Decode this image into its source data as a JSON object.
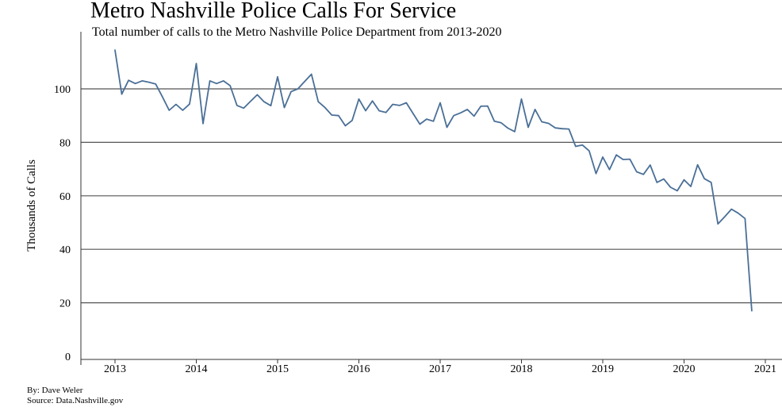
{
  "chart_data": {
    "type": "line",
    "title": "Metro Nashville Police Calls For Service",
    "subtitle": "Total number of calls to the Metro Nashville Police Department from 2013-2020",
    "ylabel": "Thousands of Calls",
    "xlabel": "",
    "ylim": [
      0,
      115
    ],
    "xlim": [
      2012.85,
      2021.2
    ],
    "yticks": [
      0,
      20,
      40,
      60,
      80,
      100
    ],
    "xticks": [
      2013,
      2014,
      2015,
      2016,
      2017,
      2018,
      2019,
      2020,
      2021
    ],
    "grid": "horizontal",
    "line_color": "#4a6f97",
    "series": [
      {
        "x_start": 2013.0,
        "x_step_months": 1,
        "values": [
          114.5,
          98.0,
          103.2,
          102.0,
          103.0,
          102.5,
          101.8,
          97.0,
          92.0,
          94.2,
          92.0,
          94.3,
          109.5,
          87.0,
          103.0,
          102.0,
          103.0,
          101.2,
          93.8,
          92.8,
          95.3,
          97.8,
          95.2,
          93.7,
          104.5,
          93.0,
          99.0,
          100.0,
          102.8,
          105.5,
          95.2,
          93.0,
          90.2,
          90.0,
          86.2,
          88.2,
          96.2,
          91.8,
          95.5,
          91.8,
          91.2,
          94.2,
          93.8,
          94.8,
          90.8,
          86.8,
          88.7,
          87.9,
          94.8,
          85.6,
          90.0,
          91.0,
          92.3,
          89.8,
          93.5,
          93.6,
          87.9,
          87.3,
          85.3,
          84.0,
          96.2,
          85.6,
          92.3,
          87.7,
          87.1,
          85.4,
          85.1,
          85.0,
          78.5,
          79.0,
          76.8,
          68.3,
          74.5,
          69.8,
          75.3,
          73.6,
          73.7,
          69.0,
          68.0,
          71.5,
          65.0,
          66.3,
          63.2,
          61.9,
          66.0,
          63.5,
          71.6,
          66.4,
          65.0,
          49.5,
          52.2,
          55.0,
          53.5,
          51.5,
          17.0
        ]
      }
    ]
  },
  "credits": {
    "author": "By: Dave Weler",
    "source": "Source: Data.Nashville.gov"
  }
}
